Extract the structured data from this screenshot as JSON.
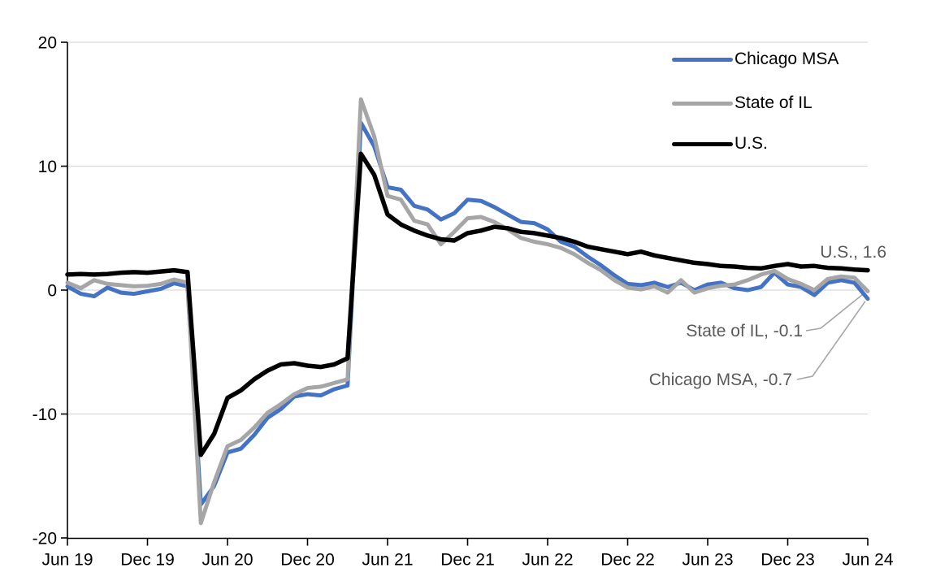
{
  "chart_data": {
    "type": "line",
    "title": "",
    "x_frequency": "monthly",
    "x_range": [
      "Jun 19",
      "Jun 24"
    ],
    "x_tick_labels": [
      "Jun 19",
      "Dec 19",
      "Jun 20",
      "Dec 20",
      "Jun 21",
      "Dec 21",
      "Jun 22",
      "Dec 22",
      "Jun 23",
      "Dec 23",
      "Jun 24"
    ],
    "y_ticks": [
      20,
      10,
      0,
      -10,
      -20
    ],
    "ylim": [
      -20,
      20
    ],
    "grid": "horizontal-light",
    "legend_position": "top-right",
    "series": [
      {
        "name": "Chicago MSA",
        "color": "#4472C4",
        "final_value": -0.7,
        "values": [
          0.3,
          -0.3,
          -0.5,
          0.2,
          -0.2,
          -0.3,
          -0.1,
          0.1,
          0.55,
          0.3,
          -17.3,
          -15.8,
          -13.1,
          -12.8,
          -11.7,
          -10.3,
          -9.6,
          -8.6,
          -8.4,
          -8.5,
          -8.0,
          -7.7,
          13.5,
          11.6,
          8.3,
          8.1,
          6.8,
          6.5,
          5.7,
          6.2,
          7.3,
          7.2,
          6.7,
          6.1,
          5.5,
          5.4,
          4.9,
          3.9,
          3.5,
          2.7,
          2.0,
          1.2,
          0.5,
          0.4,
          0.6,
          0.25,
          0.6,
          0.0,
          0.45,
          0.6,
          0.15,
          0.0,
          0.25,
          1.4,
          0.45,
          0.25,
          -0.4,
          0.6,
          0.8,
          0.6,
          -0.7
        ]
      },
      {
        "name": "State of IL",
        "color": "#A6A6A6",
        "final_value": -0.1,
        "values": [
          0.6,
          0.15,
          0.8,
          0.5,
          0.4,
          0.3,
          0.35,
          0.5,
          0.85,
          0.6,
          -18.8,
          -15.5,
          -12.6,
          -12.1,
          -11.1,
          -9.9,
          -9.2,
          -8.4,
          -7.9,
          -7.8,
          -7.5,
          -7.2,
          15.4,
          12.4,
          7.6,
          7.3,
          5.6,
          5.3,
          3.7,
          4.7,
          5.8,
          5.9,
          5.5,
          4.9,
          4.2,
          3.9,
          3.7,
          3.4,
          2.9,
          2.2,
          1.6,
          0.8,
          0.2,
          0.05,
          0.3,
          -0.2,
          0.8,
          -0.2,
          0.15,
          0.35,
          0.45,
          0.8,
          1.25,
          1.55,
          0.9,
          0.5,
          0.0,
          0.9,
          1.1,
          1.0,
          -0.1
        ]
      },
      {
        "name": "U.S.",
        "color": "#000000",
        "final_value": 1.6,
        "values": [
          1.25,
          1.3,
          1.25,
          1.3,
          1.4,
          1.45,
          1.4,
          1.5,
          1.6,
          1.45,
          -13.3,
          -11.6,
          -8.7,
          -8.1,
          -7.2,
          -6.5,
          -6.0,
          -5.9,
          -6.1,
          -6.2,
          -6.0,
          -5.5,
          11.0,
          9.3,
          6.1,
          5.3,
          4.8,
          4.4,
          4.1,
          4.0,
          4.6,
          4.8,
          5.1,
          5.0,
          4.7,
          4.6,
          4.4,
          4.2,
          3.9,
          3.5,
          3.3,
          3.1,
          2.9,
          3.1,
          2.8,
          2.6,
          2.4,
          2.2,
          2.1,
          1.95,
          1.9,
          1.8,
          1.75,
          1.95,
          2.1,
          1.9,
          1.95,
          1.8,
          1.75,
          1.65,
          1.6
        ]
      }
    ],
    "annotations": [
      {
        "text": "U.S., 1.6",
        "series": "U.S."
      },
      {
        "text": "State of IL, -0.1",
        "series": "State of IL"
      },
      {
        "text": "Chicago MSA, -0.7",
        "series": "Chicago MSA"
      }
    ],
    "colors": {
      "gridline": "#D9D9D9",
      "axis": "#000000",
      "annotation_text": "#595959",
      "leader_line": "#A6A6A6"
    }
  }
}
